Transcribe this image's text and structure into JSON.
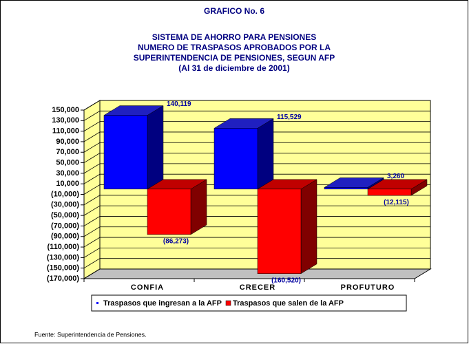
{
  "chart_data": {
    "type": "bar3d",
    "supertitle": "GRAFICO No. 6",
    "title": [
      "SISTEMA DE AHORRO PARA PENSIONES",
      "NUMERO DE TRASPASOS APROBADOS POR LA",
      "SUPERINTENDENCIA DE PENSIONES, SEGUN AFP",
      "(Al 31 de diciembre de 2001)"
    ],
    "categories": [
      "CONFIA",
      "CRECER",
      "PROFUTURO"
    ],
    "series": [
      {
        "name": "Traspasos que ingresan a la AFP",
        "color": "#0000ff",
        "values": [
          140119,
          115529,
          3260
        ],
        "value_labels": [
          "140,119",
          "115,529",
          "3,260"
        ]
      },
      {
        "name": "Traspasos que salen de la AFP",
        "color": "#ff0000",
        "values": [
          -86273,
          -160520,
          -12115
        ],
        "value_labels": [
          "(86,273)",
          "(160,520)",
          "(12,115)"
        ]
      }
    ],
    "ylim": [
      -170000,
      150000
    ],
    "yticks": [
      {
        "value": 150000,
        "label": "150,000"
      },
      {
        "value": 130000,
        "label": "130,000"
      },
      {
        "value": 110000,
        "label": "110,000"
      },
      {
        "value": 90000,
        "label": "90,000"
      },
      {
        "value": 70000,
        "label": "70,000"
      },
      {
        "value": 50000,
        "label": "50,000"
      },
      {
        "value": 30000,
        "label": "30,000"
      },
      {
        "value": 10000,
        "label": "10,000"
      },
      {
        "value": -10000,
        "label": "(10,000)"
      },
      {
        "value": -30000,
        "label": "(30,000)"
      },
      {
        "value": -50000,
        "label": "(50,000)"
      },
      {
        "value": -70000,
        "label": "(70,000)"
      },
      {
        "value": -90000,
        "label": "(90,000)"
      },
      {
        "value": -110000,
        "label": "(110,000)"
      },
      {
        "value": -130000,
        "label": "(130,000)"
      },
      {
        "value": -150000,
        "label": "(150,000)"
      },
      {
        "value": -170000,
        "label": "(170,000)"
      }
    ],
    "grid": true,
    "wall_color": "#ffff99",
    "source": "Fuente: Superintendencia de Pensiones."
  }
}
